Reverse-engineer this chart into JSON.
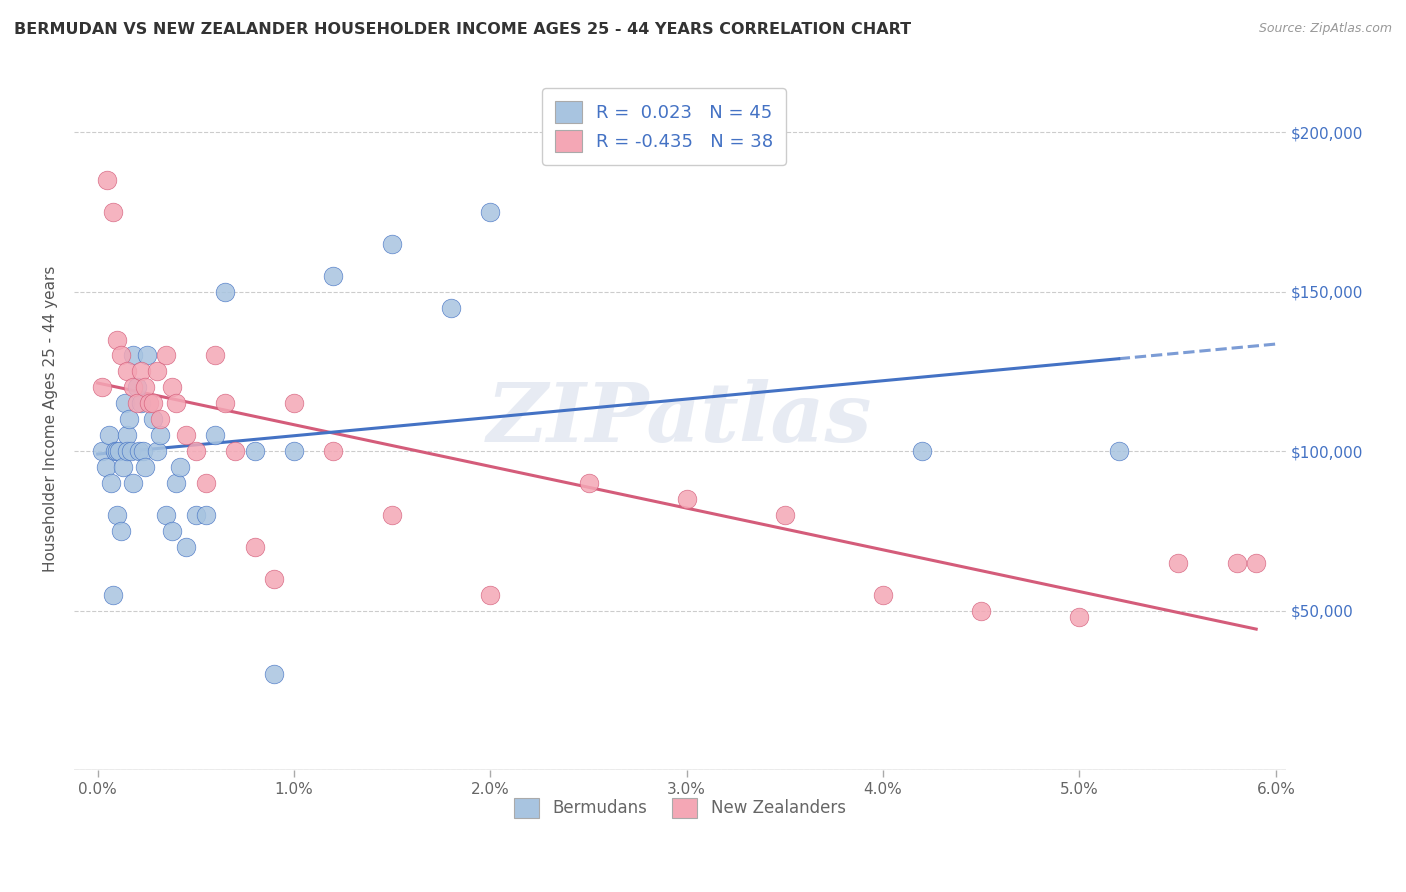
{
  "title": "BERMUDAN VS NEW ZEALANDER HOUSEHOLDER INCOME AGES 25 - 44 YEARS CORRELATION CHART",
  "source": "Source: ZipAtlas.com",
  "ylabel": "Householder Income Ages 25 - 44 years",
  "ytick_vals": [
    0,
    50000,
    100000,
    150000,
    200000
  ],
  "ytick_right_labels": [
    "",
    "$50,000",
    "$100,000",
    "$150,000",
    "$200,000"
  ],
  "xmin": 0.0,
  "xmax": 6.0,
  "ymin": 0,
  "ymax": 220000,
  "bermuda_color": "#a8c4e0",
  "bermuda_line_color": "#4472c4",
  "nz_color": "#f4a7b5",
  "nz_line_color": "#d45c7a",
  "bermuda_R": 0.023,
  "bermuda_N": 45,
  "nz_R": -0.435,
  "nz_N": 38,
  "watermark": "ZIPatlas",
  "bermuda_x": [
    0.02,
    0.04,
    0.06,
    0.07,
    0.08,
    0.09,
    0.1,
    0.1,
    0.11,
    0.12,
    0.13,
    0.14,
    0.15,
    0.15,
    0.16,
    0.17,
    0.18,
    0.18,
    0.2,
    0.21,
    0.22,
    0.23,
    0.24,
    0.25,
    0.28,
    0.3,
    0.32,
    0.35,
    0.38,
    0.4,
    0.42,
    0.45,
    0.5,
    0.55,
    0.6,
    0.65,
    0.8,
    0.9,
    1.0,
    1.2,
    1.5,
    1.8,
    2.0,
    4.2,
    5.2
  ],
  "bermuda_y": [
    100000,
    95000,
    105000,
    90000,
    55000,
    100000,
    100000,
    80000,
    100000,
    75000,
    95000,
    115000,
    105000,
    100000,
    110000,
    100000,
    90000,
    130000,
    120000,
    100000,
    115000,
    100000,
    95000,
    130000,
    110000,
    100000,
    105000,
    80000,
    75000,
    90000,
    95000,
    70000,
    80000,
    80000,
    105000,
    150000,
    100000,
    30000,
    100000,
    155000,
    165000,
    145000,
    175000,
    100000,
    100000
  ],
  "nz_x": [
    0.02,
    0.05,
    0.08,
    0.1,
    0.12,
    0.15,
    0.18,
    0.2,
    0.22,
    0.24,
    0.26,
    0.28,
    0.3,
    0.32,
    0.35,
    0.38,
    0.4,
    0.45,
    0.5,
    0.55,
    0.6,
    0.65,
    0.7,
    0.8,
    0.9,
    1.0,
    1.2,
    1.5,
    2.0,
    2.5,
    3.0,
    3.5,
    4.0,
    4.5,
    5.0,
    5.5,
    5.8,
    5.9
  ],
  "nz_y": [
    120000,
    185000,
    175000,
    135000,
    130000,
    125000,
    120000,
    115000,
    125000,
    120000,
    115000,
    115000,
    125000,
    110000,
    130000,
    120000,
    115000,
    105000,
    100000,
    90000,
    130000,
    115000,
    100000,
    70000,
    60000,
    115000,
    100000,
    80000,
    55000,
    90000,
    85000,
    80000,
    55000,
    50000,
    48000,
    65000,
    65000,
    65000
  ]
}
